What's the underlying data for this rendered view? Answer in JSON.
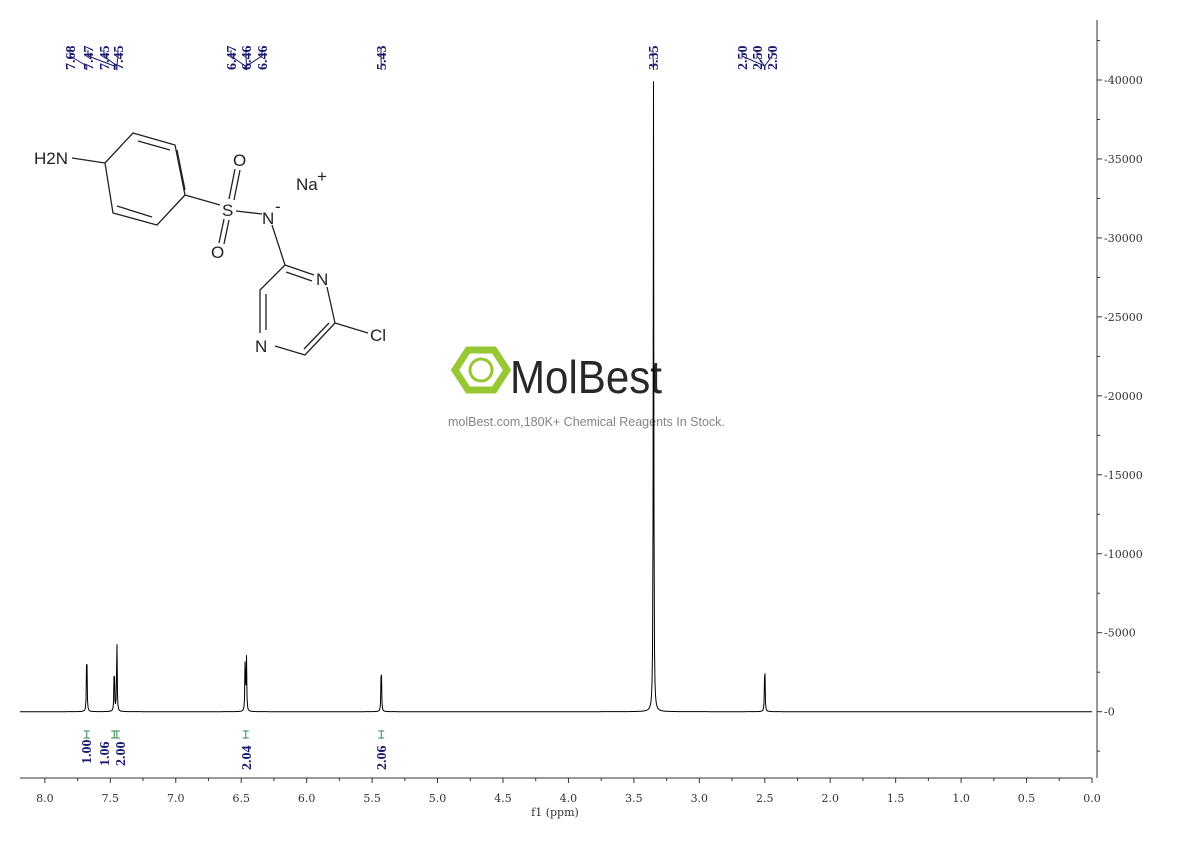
{
  "chart_data": {
    "type": "line",
    "xlabel": "f1 (ppm)",
    "ylabel": "",
    "xlim": [
      8.19,
      0.0
    ],
    "ylim": [
      -4200,
      43800
    ],
    "x_ticks": [
      "8.0",
      "7.5",
      "7.0",
      "6.5",
      "6.0",
      "5.5",
      "5.0",
      "4.5",
      "4.0",
      "3.5",
      "3.0",
      "2.5",
      "2.0",
      "1.5",
      "1.0",
      "0.5",
      "0.0"
    ],
    "y_ticks": [
      "0",
      "5000",
      "10000",
      "15000",
      "20000",
      "25000",
      "30000",
      "35000",
      "40000"
    ],
    "grid": false,
    "peaks": [
      {
        "ppm": 7.68,
        "height": 4700
      },
      {
        "ppm": 7.47,
        "height": 3400
      },
      {
        "ppm": 7.45,
        "height": 5000
      },
      {
        "ppm": 6.47,
        "height": 3500
      },
      {
        "ppm": 6.46,
        "height": 3500
      },
      {
        "ppm": 5.43,
        "height": 3600
      },
      {
        "ppm": 3.35,
        "height": 40000
      },
      {
        "ppm": 2.5,
        "height": 3600
      }
    ],
    "peak_labels": [
      {
        "group": [
          "7.68",
          "7.47",
          "7.45",
          "7.45"
        ]
      },
      {
        "group": [
          "6.47",
          "6.46",
          "6.46"
        ]
      },
      {
        "group": [
          "5.43"
        ]
      },
      {
        "group": [
          "3.35"
        ]
      },
      {
        "group": [
          "2.50",
          "2.50",
          "2.50"
        ]
      }
    ],
    "integrals": [
      {
        "ppm": 7.68,
        "value": "1.00"
      },
      {
        "ppm": 7.47,
        "value": "1.06"
      },
      {
        "ppm": 7.45,
        "value": "2.00"
      },
      {
        "ppm": 6.465,
        "value": "2.04"
      },
      {
        "ppm": 5.43,
        "value": "2.06"
      }
    ],
    "line_color": "#000000",
    "label_color": "#1a1a6e",
    "integral_color": "#2e8b57"
  },
  "molecule": {
    "labels": {
      "nh2": "H2N",
      "o1": "O",
      "o2": "O",
      "s": "S",
      "n": "N",
      "na": "Na",
      "n_ring1": "N",
      "n_ring2": "N",
      "cl": "Cl"
    }
  },
  "watermark": {
    "brand": "MolBest",
    "tagline": "molBest.com,180K+ Chemical Reagents In Stock.",
    "color": "#8dc21f"
  }
}
